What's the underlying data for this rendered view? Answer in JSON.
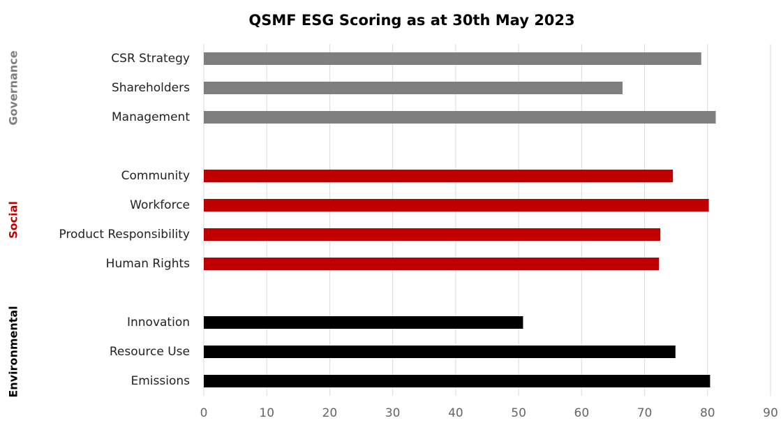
{
  "chart_data": {
    "type": "bar",
    "orientation": "horizontal",
    "title": "QSMF ESG Scoring as at 30th May 2023",
    "groups": [
      {
        "name": "Governance",
        "color": "#7f7f7f",
        "categories": [
          "CSR Strategy",
          "Shareholders",
          "Management "
        ],
        "values": [
          79,
          66.5,
          81.3
        ]
      },
      {
        "name": "Social",
        "color": "#c00000",
        "categories": [
          "Community ",
          "Workforce",
          "Product Responsibility",
          "Human Rights "
        ],
        "values": [
          74.5,
          80.2,
          72.5,
          72.3
        ]
      },
      {
        "name": "Environmental",
        "color": "#000000",
        "categories": [
          "Innovation",
          "Resource Use",
          "Emissions"
        ],
        "values": [
          50.7,
          74.9,
          80.4
        ]
      }
    ],
    "xlim": [
      0,
      90
    ],
    "xticks": [
      0,
      10,
      20,
      30,
      40,
      50,
      60,
      70,
      80,
      90
    ],
    "grid": true
  }
}
